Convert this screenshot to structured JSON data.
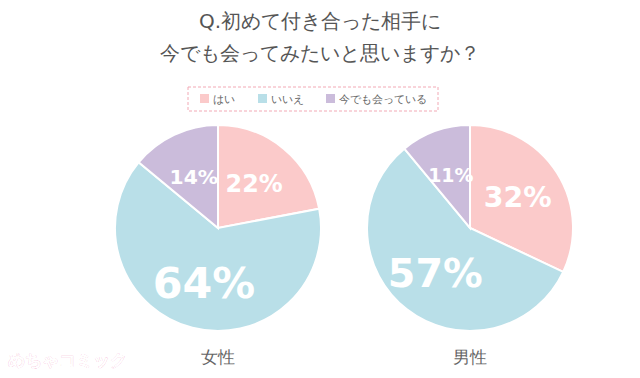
{
  "title": "Q.初めて付き合った相手に\n今でも会ってみたいと思いますか？",
  "logo": "めちゃコミック",
  "chart_data": [
    {
      "type": "pie",
      "title": "女性",
      "categories": [
        "はい",
        "いいえ",
        "今でも会っている"
      ],
      "values": [
        22,
        64,
        14
      ],
      "value_labels": [
        "22%",
        "64%",
        "14%"
      ],
      "colors": [
        "#fbcaca",
        "#b9dfe8",
        "#cbbcdb"
      ],
      "data_labels": true,
      "legend": "top"
    },
    {
      "type": "pie",
      "title": "男性",
      "categories": [
        "はい",
        "いいえ",
        "今でも会っている"
      ],
      "values": [
        32,
        57,
        11
      ],
      "value_labels": [
        "32%",
        "57%",
        "11%"
      ],
      "colors": [
        "#fbcaca",
        "#b9dfe8",
        "#cbbcdb"
      ],
      "data_labels": true
    }
  ]
}
